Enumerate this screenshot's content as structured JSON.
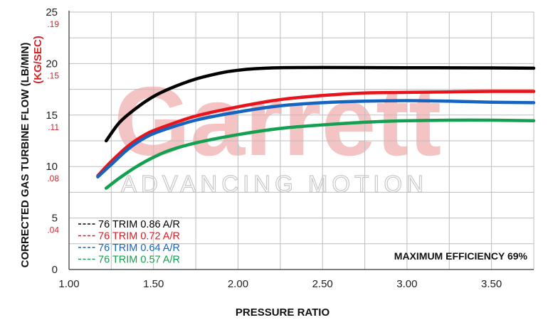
{
  "chart_data": {
    "type": "line",
    "xlabel": "PRESSURE RATIO",
    "ylabel": "CORRECTED GAS TURBINE FLOW (LB/MIN)",
    "ylabel_secondary": "(KG/SEC)",
    "xlim": [
      1.0,
      3.75
    ],
    "ylim": [
      0,
      25
    ],
    "grid": true,
    "x_ticks": [
      "1.00",
      "1.50",
      "2.00",
      "2.50",
      "3.00",
      "3.50"
    ],
    "x_tick_values": [
      1.0,
      1.5,
      2.0,
      2.5,
      3.0,
      3.5
    ],
    "y_ticks": [
      "0",
      "5",
      "10",
      "15",
      "20",
      "25"
    ],
    "y_tick_values": [
      0,
      5,
      10,
      15,
      20,
      25
    ],
    "y_ticks_secondary": [
      ".04",
      ".08",
      ".11",
      ".15",
      ".19"
    ],
    "y_ticks_secondary_at": [
      5,
      10,
      15,
      20,
      25
    ],
    "legend_placement": "bottom-left",
    "annotation": "MAXIMUM EFFICIENCY 69%",
    "watermark": {
      "brand": "Garrett",
      "tagline": "ADVANCING MOTION"
    },
    "series": [
      {
        "name": "76 TRIM 0.86 A/R",
        "color": "#000000",
        "x": [
          1.22,
          1.3,
          1.4,
          1.5,
          1.6,
          1.75,
          1.9,
          2.0,
          2.1,
          2.25,
          2.5,
          3.0,
          3.5,
          3.75
        ],
        "y": [
          12.5,
          14.3,
          15.7,
          16.8,
          17.6,
          18.5,
          19.1,
          19.35,
          19.5,
          19.6,
          19.62,
          19.6,
          19.58,
          19.55
        ]
      },
      {
        "name": "76 TRIM 0.72 A/R",
        "color": "#e8141b",
        "x": [
          1.17,
          1.25,
          1.35,
          1.45,
          1.55,
          1.75,
          2.0,
          2.25,
          2.5,
          2.75,
          3.0,
          3.25,
          3.5,
          3.75
        ],
        "y": [
          9.1,
          10.5,
          12.0,
          13.1,
          13.8,
          14.9,
          15.8,
          16.5,
          16.9,
          17.15,
          17.2,
          17.25,
          17.3,
          17.3
        ]
      },
      {
        "name": "76 TRIM 0.64 A/R",
        "color": "#1565c0",
        "x": [
          1.17,
          1.25,
          1.35,
          1.45,
          1.55,
          1.75,
          2.0,
          2.25,
          2.5,
          2.75,
          3.0,
          3.25,
          3.5,
          3.75
        ],
        "y": [
          9.0,
          10.2,
          11.7,
          12.8,
          13.5,
          14.5,
          15.3,
          15.9,
          16.2,
          16.35,
          16.4,
          16.35,
          16.25,
          16.2
        ]
      },
      {
        "name": "76 TRIM 0.57 A/R",
        "color": "#14a050",
        "x": [
          1.22,
          1.3,
          1.4,
          1.5,
          1.6,
          1.75,
          2.0,
          2.25,
          2.5,
          2.75,
          3.0,
          3.25,
          3.5,
          3.75
        ],
        "y": [
          7.9,
          8.9,
          10.0,
          10.9,
          11.6,
          12.3,
          13.1,
          13.7,
          14.05,
          14.3,
          14.45,
          14.5,
          14.5,
          14.45
        ]
      }
    ]
  }
}
